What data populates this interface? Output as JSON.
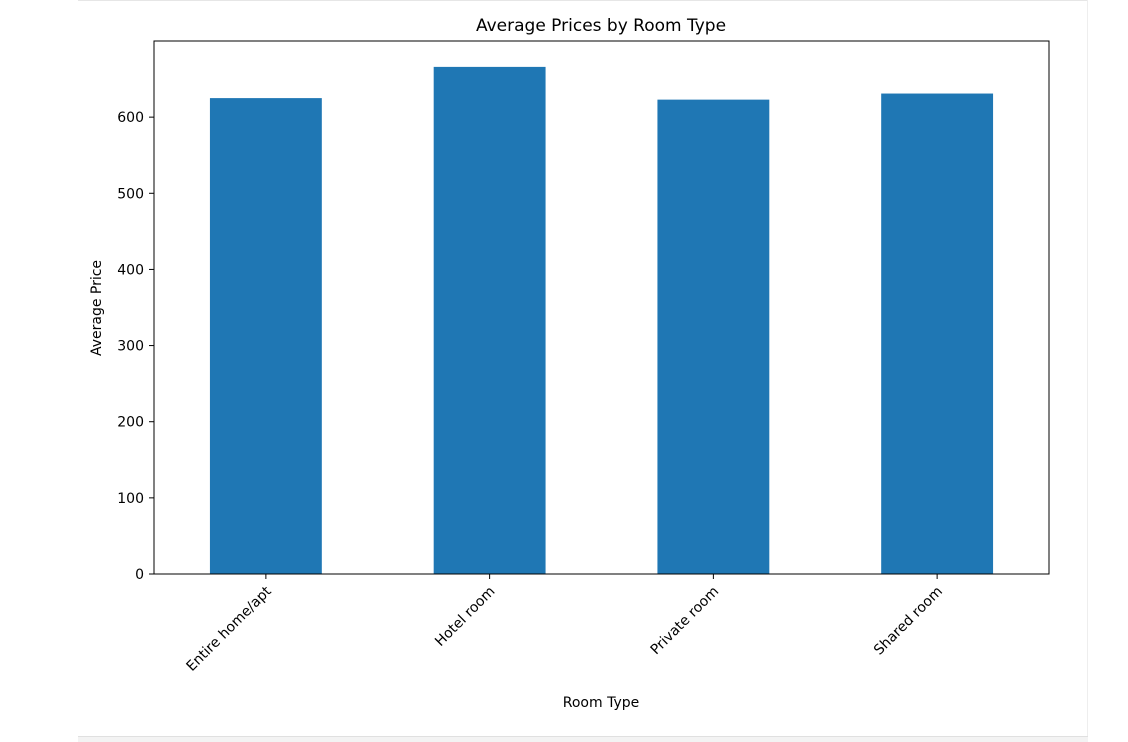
{
  "chart_data": {
    "type": "bar",
    "title": "Average Prices by Room Type",
    "xlabel": "Room Type",
    "ylabel": "Average Price",
    "categories": [
      "Entire home/apt",
      "Hotel room",
      "Private room",
      "Shared room"
    ],
    "values": [
      625,
      666,
      623,
      631
    ],
    "ylim": [
      0,
      700
    ],
    "yticks": [
      0,
      100,
      200,
      300,
      400,
      500,
      600
    ],
    "bar_color": "#1f77b4",
    "grid": false,
    "legend": "none"
  }
}
